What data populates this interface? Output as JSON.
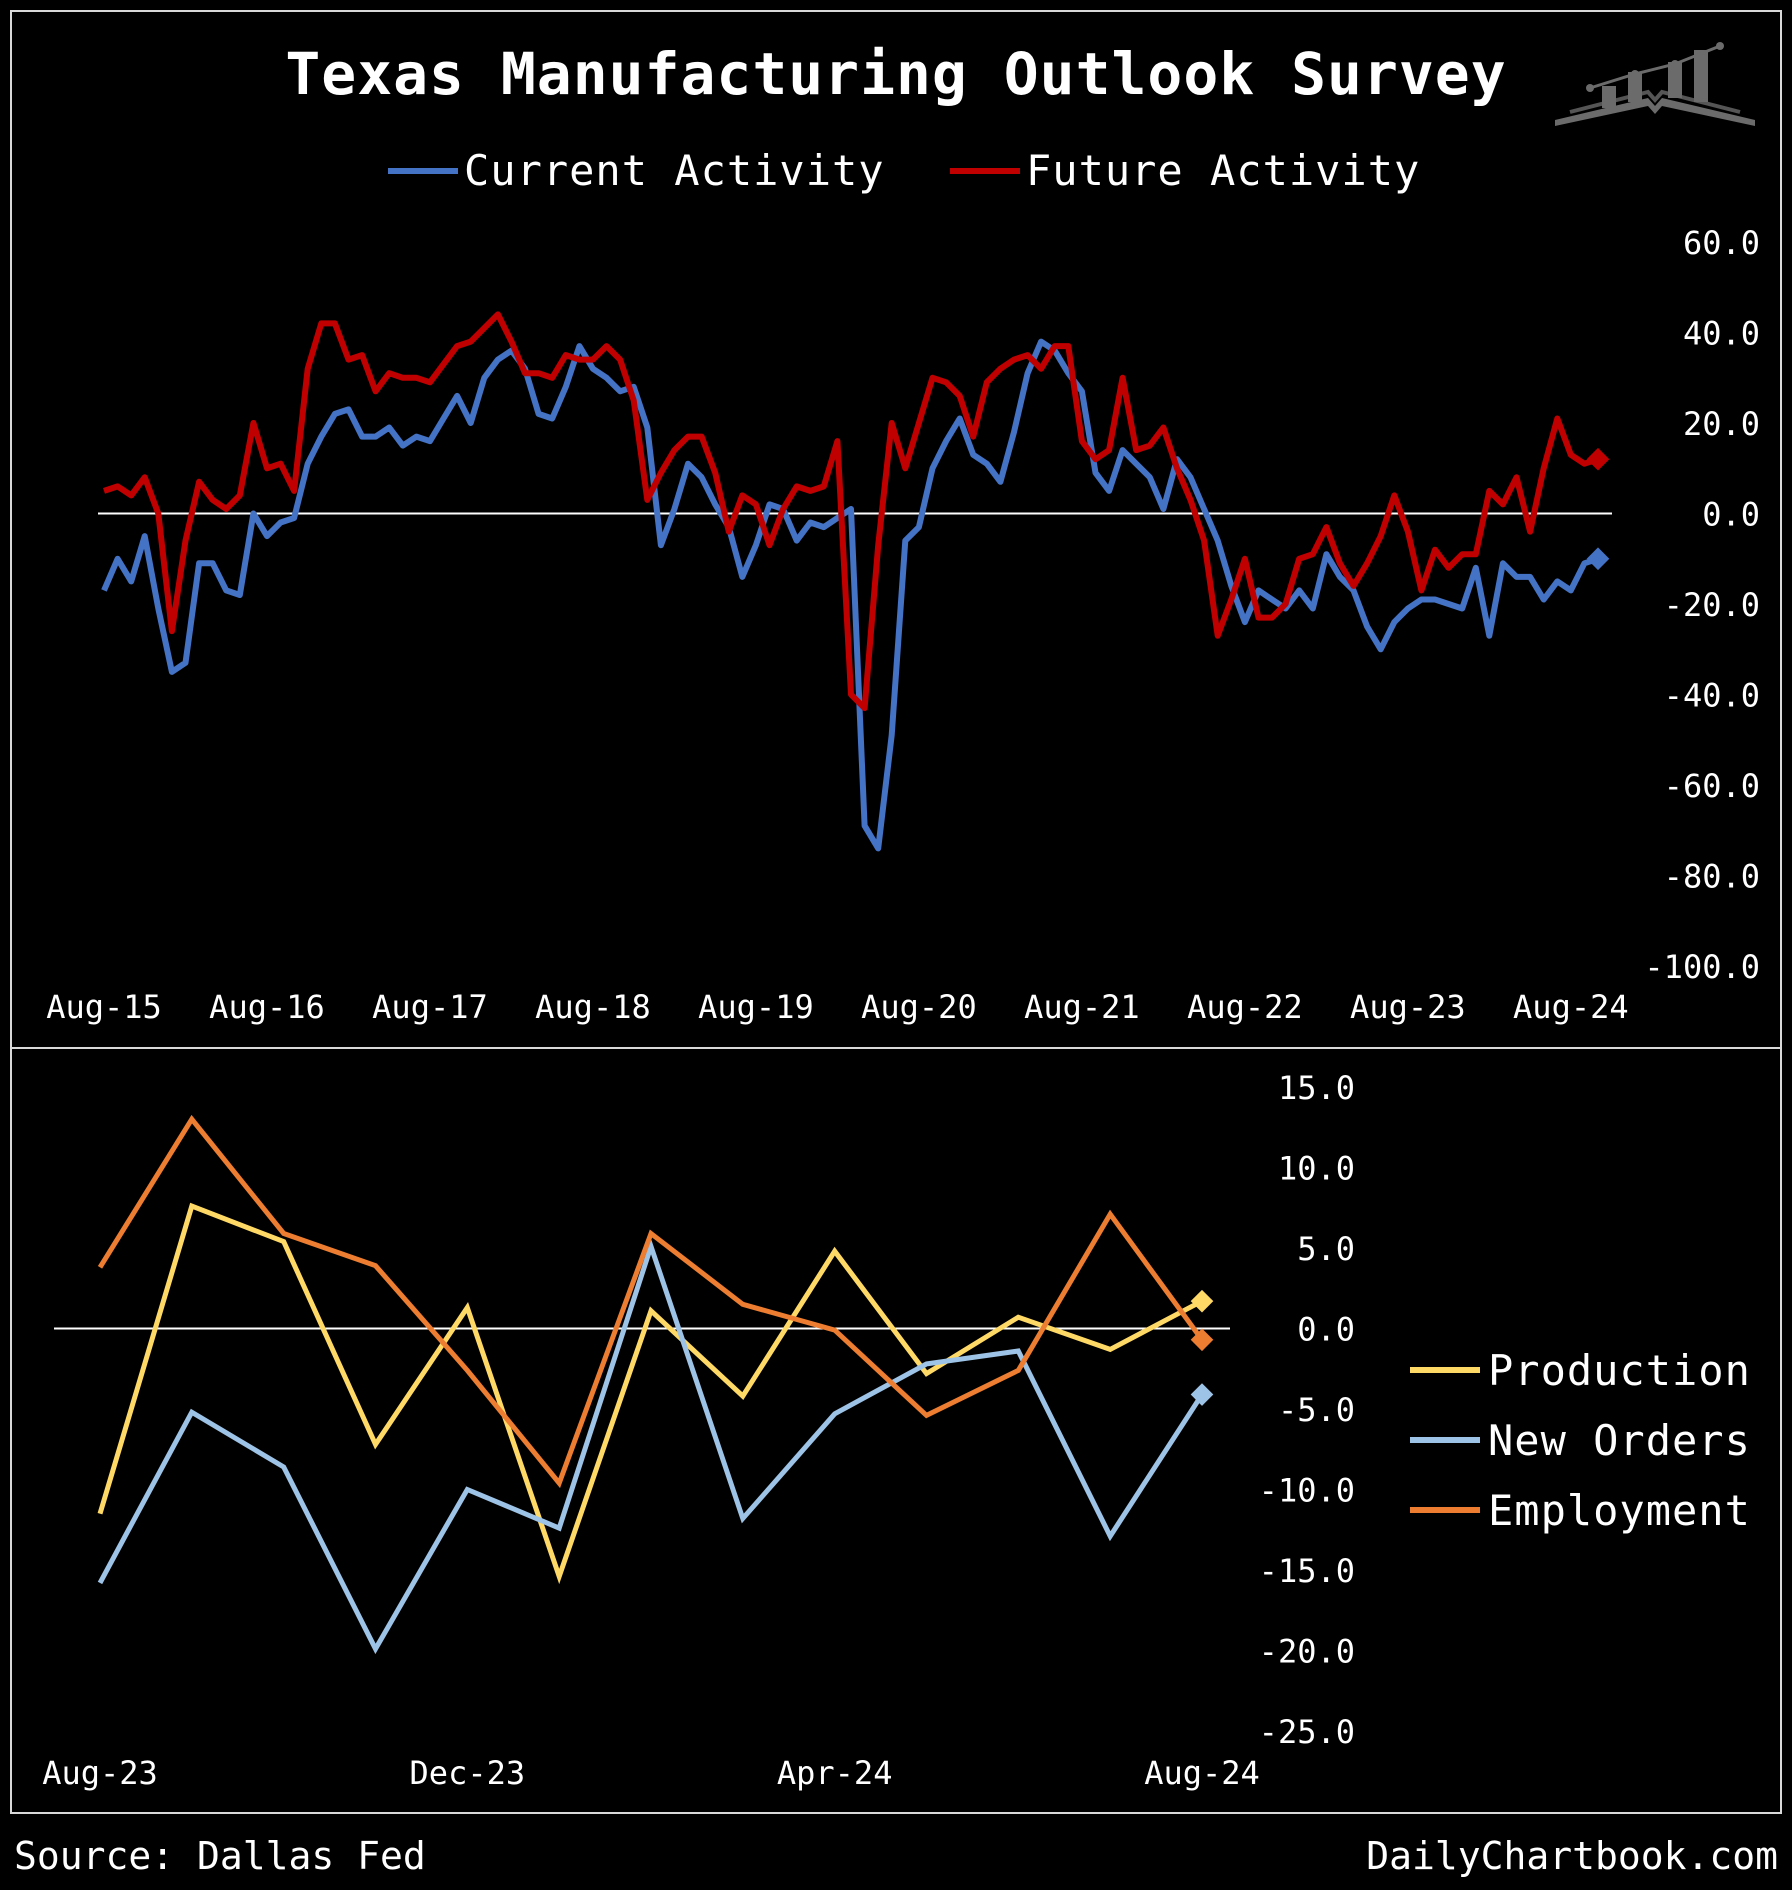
{
  "title": "Texas Manufacturing Outlook Survey",
  "footer": {
    "source": "Source: Dallas Fed",
    "brand": "DailyChartbook.com"
  },
  "colors": {
    "current": "#4472c4",
    "future": "#c00000",
    "production": "#ffd966",
    "new_orders": "#9dc3e6",
    "employment": "#ed7d31",
    "background": "#000000",
    "zero_line": "#ffffff"
  },
  "icons": {
    "logo": "bar-chart-book-logo"
  },
  "chart_data": [
    {
      "type": "line",
      "legend": {
        "placement": "top-center"
      },
      "series_labels": [
        "Current Activity",
        "Future Activity"
      ],
      "ylim": [
        -100,
        60
      ],
      "y_ticks": [
        "60.0",
        "40.0",
        "20.0",
        "0.0",
        "-20.0",
        "-40.0",
        "-60.0",
        "-80.0",
        "-100.0"
      ],
      "y_tick_values": [
        60,
        40,
        20,
        0,
        -20,
        -40,
        -60,
        -80,
        -100
      ],
      "x_start": "Aug-15",
      "x_tick_labels": [
        "Aug-15",
        "Aug-16",
        "Aug-17",
        "Aug-18",
        "Aug-19",
        "Aug-20",
        "Aug-21",
        "Aug-22",
        "Aug-23",
        "Aug-24"
      ],
      "zero_line": true,
      "series": [
        {
          "name": "Current Activity",
          "values": [
            -17,
            -10,
            -15,
            -5,
            -21,
            -35,
            -33,
            -11,
            -11,
            -17,
            -18,
            0,
            -5,
            -2,
            -1,
            11,
            17,
            22,
            23,
            17,
            17,
            19,
            15,
            17,
            16,
            21,
            26,
            20,
            30,
            34,
            36,
            32,
            22,
            21,
            28,
            37,
            32,
            30,
            27,
            28,
            19,
            -7,
            1,
            11,
            8,
            2,
            -3,
            -14,
            -7,
            2,
            1,
            -6,
            -2,
            -3,
            -1,
            1,
            -69,
            -74,
            -49,
            -6,
            -3,
            10,
            16,
            21,
            13,
            11,
            7,
            18,
            31,
            38,
            36,
            31,
            27,
            9,
            5,
            14,
            11,
            8,
            1,
            12,
            8,
            1,
            -6,
            -16,
            -24,
            -17,
            -19,
            -21,
            -17,
            -21,
            -9,
            -14,
            -17,
            -25,
            -30,
            -24,
            -21,
            -19,
            -19,
            -20,
            -21,
            -12,
            -27,
            -11,
            -14,
            -14,
            -19,
            -15,
            -17,
            -11,
            -10
          ]
        },
        {
          "name": "Future Activity",
          "values": [
            5,
            6,
            4,
            8,
            0,
            -26,
            -6,
            7,
            3,
            1,
            4,
            20,
            10,
            11,
            5,
            32,
            42,
            42,
            34,
            35,
            27,
            31,
            30,
            30,
            29,
            33,
            37,
            38,
            41,
            44,
            38,
            31,
            31,
            30,
            35,
            34,
            34,
            37,
            34,
            25,
            3,
            9,
            14,
            17,
            17,
            9,
            -4,
            4,
            2,
            -7,
            1,
            6,
            5,
            6,
            16,
            -40,
            -43,
            -7,
            20,
            10,
            20,
            30,
            29,
            26,
            17,
            29,
            32,
            34,
            35,
            32,
            37,
            37,
            16,
            12,
            14,
            30,
            14,
            15,
            19,
            10,
            3,
            -6,
            -27,
            -19,
            -10,
            -23,
            -23,
            -20,
            -10,
            -9,
            -3,
            -11,
            -16,
            -11,
            -5,
            4,
            -4,
            -17,
            -8,
            -12,
            -9,
            -9,
            5,
            2,
            8,
            -4,
            10,
            21,
            13,
            11,
            12
          ]
        }
      ]
    },
    {
      "type": "line",
      "legend": {
        "placement": "right"
      },
      "series_labels": [
        "Production",
        "New Orders",
        "Employment"
      ],
      "ylim": [
        -25,
        15
      ],
      "y_ticks": [
        "15.0",
        "10.0",
        "5.0",
        "0.0",
        "-5.0",
        "-10.0",
        "-15.0",
        "-20.0",
        "-25.0"
      ],
      "y_tick_values": [
        15,
        10,
        5,
        0,
        -5,
        -10,
        -15,
        -20,
        -25
      ],
      "categories": [
        "Aug-23",
        "Sep-23",
        "Oct-23",
        "Nov-23",
        "Dec-23",
        "Jan-24",
        "Feb-24",
        "Mar-24",
        "Apr-24",
        "May-24",
        "Jun-24",
        "Jul-24",
        "Aug-24"
      ],
      "x_tick_labels": [
        "Aug-23",
        "Dec-23",
        "Apr-24",
        "Aug-24"
      ],
      "zero_line": true,
      "series": [
        {
          "name": "Production",
          "values": [
            -11.5,
            7.6,
            5.4,
            -7.2,
            1.3,
            -15.4,
            1.1,
            -4.2,
            4.8,
            -2.8,
            0.7,
            -1.3,
            1.7
          ]
        },
        {
          "name": "New Orders",
          "values": [
            -15.8,
            -5.2,
            -8.6,
            -19.9,
            -10.0,
            -12.4,
            5.1,
            -11.8,
            -5.3,
            -2.2,
            -1.4,
            -12.9,
            -4.1
          ]
        },
        {
          "name": "Employment",
          "values": [
            3.8,
            13.0,
            5.9,
            3.9,
            -2.6,
            -9.6,
            5.9,
            1.5,
            -0.1,
            -5.4,
            -2.6,
            7.1,
            -0.7
          ]
        }
      ]
    }
  ]
}
